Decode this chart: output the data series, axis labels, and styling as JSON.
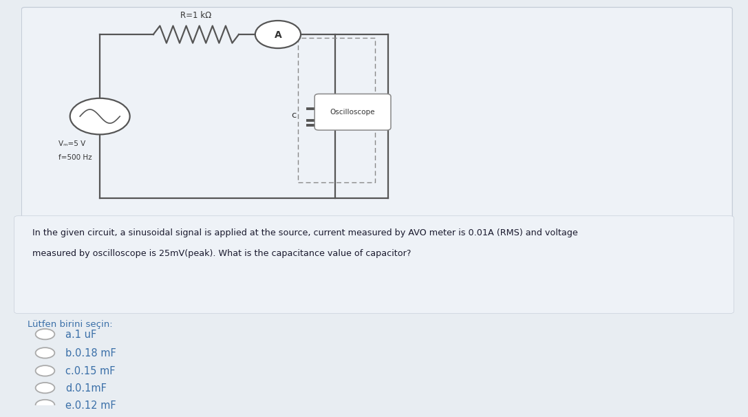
{
  "page_bg": "#e8edf2",
  "panel_bg": "#eef2f7",
  "wire_color": "#555555",
  "text_color": "#333333",
  "blue_color": "#3a6fa8",
  "resistor_label": "R=1 kΩ",
  "ammeter_label": "A",
  "capacitor_label": "c",
  "oscilloscope_label": "Oscilloscope",
  "source_label1": "Vₘ=5 V",
  "source_label2": "f=500 Hz",
  "question_text_line1": "In the given circuit, a sinusoidal signal is applied at the source, current measured by AVO meter is 0.01A (RMS) and voltage",
  "question_text_line2": "measured by oscilloscope is 25mV(peak). What is the capacitance value of capacitor?",
  "prompt_text": "Lütfen birini seçin:",
  "options": [
    "a.1 uF",
    "b.0.18 mF",
    "c.0.15 mF",
    "d.0.1mF",
    "e.0.12 mF"
  ]
}
